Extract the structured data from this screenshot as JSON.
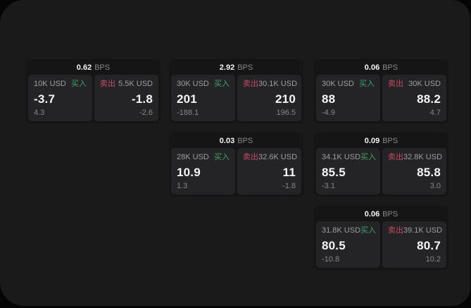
{
  "labels": {
    "buy": "买入",
    "sell": "卖出",
    "bps_suffix": "BPS"
  },
  "colors": {
    "background": "#050505",
    "surface": "#1a1a1b",
    "card": "#151516",
    "panel": "#242427",
    "buy_accent": "#3fa36a",
    "sell_accent": "#c44a60",
    "value_text": "#f5f5f5",
    "label_text": "#9e9e9e",
    "muted_text": "#878787"
  },
  "columns": [
    [
      0
    ],
    [
      1,
      3
    ],
    [
      2,
      4,
      5
    ]
  ],
  "cards": [
    {
      "spread_bps": "0.62",
      "buy": {
        "amount": "10K USD",
        "value": "-3.7",
        "change": "4.3"
      },
      "sell": {
        "amount": "5.5K USD",
        "value": "-1.8",
        "change": "-2.6"
      }
    },
    {
      "spread_bps": "2.92",
      "buy": {
        "amount": "30K USD",
        "value": "201",
        "change": "-188.1"
      },
      "sell": {
        "amount": "30.1K USD",
        "value": "210",
        "change": "196.5"
      }
    },
    {
      "spread_bps": "0.06",
      "buy": {
        "amount": "30K USD",
        "value": "88",
        "change": "-4.9"
      },
      "sell": {
        "amount": "30K USD",
        "value": "88.2",
        "change": "4.7"
      }
    },
    {
      "spread_bps": "0.03",
      "buy": {
        "amount": "28K USD",
        "value": "10.9",
        "change": "1.3"
      },
      "sell": {
        "amount": "32.6K USD",
        "value": "11",
        "change": "-1.8"
      }
    },
    {
      "spread_bps": "0.09",
      "buy": {
        "amount": "34.1K USD",
        "value": "85.5",
        "change": "-3.1"
      },
      "sell": {
        "amount": "32.8K USD",
        "value": "85.8",
        "change": "3.0"
      }
    },
    {
      "spread_bps": "0.06",
      "buy": {
        "amount": "31.8K USD",
        "value": "80.5",
        "change": "-10.8"
      },
      "sell": {
        "amount": "39.1K USD",
        "value": "80.7",
        "change": "10.2"
      }
    }
  ]
}
